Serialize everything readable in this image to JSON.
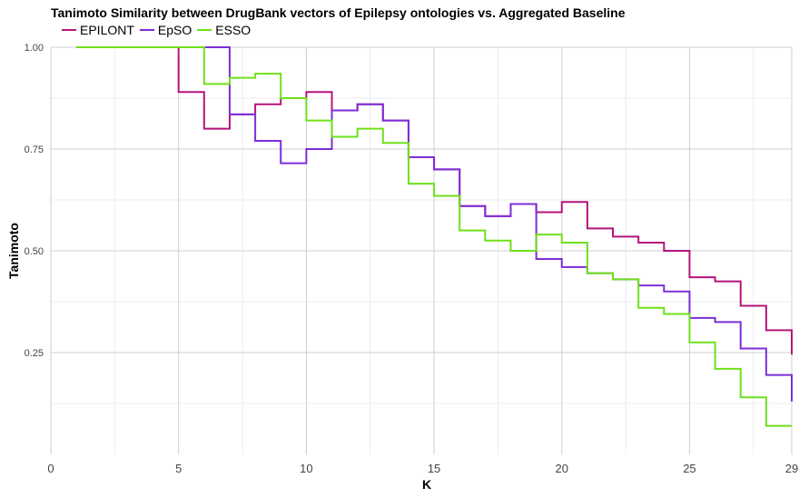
{
  "chart_data": {
    "type": "line",
    "step": true,
    "title": "Tanimoto Similarity between DrugBank vectors of Epilepsy ontologies vs. Aggregated Baseline",
    "xlabel": "K",
    "ylabel": "Tanimoto",
    "xlim": [
      0,
      29
    ],
    "ylim": [
      0,
      1.0
    ],
    "x_ticks": [
      0,
      5,
      10,
      15,
      20,
      25,
      29
    ],
    "y_ticks": [
      0.25,
      0.5,
      0.75,
      1.0
    ],
    "y_tick_labels": [
      "0.25",
      "0.50",
      "0.75",
      "1.00"
    ],
    "grid": true,
    "legend_position": "top-left",
    "x": [
      1,
      2,
      3,
      4,
      5,
      6,
      7,
      8,
      9,
      10,
      11,
      12,
      13,
      14,
      15,
      16,
      17,
      18,
      19,
      20,
      21,
      22,
      23,
      24,
      25,
      26,
      27,
      28,
      29
    ],
    "series": [
      {
        "name": "EPILONT",
        "color": "#b5157a",
        "values": [
          1.0,
          1.0,
          1.0,
          1.0,
          0.89,
          0.8,
          0.835,
          0.86,
          0.875,
          0.89,
          0.845,
          0.86,
          0.82,
          0.73,
          0.7,
          0.61,
          0.585,
          0.615,
          0.595,
          0.62,
          0.555,
          0.535,
          0.52,
          0.5,
          0.435,
          0.425,
          0.365,
          0.305,
          0.245
        ]
      },
      {
        "name": "EpSO",
        "color": "#7b2fd8",
        "values": [
          1.0,
          1.0,
          1.0,
          1.0,
          1.0,
          1.0,
          0.835,
          0.77,
          0.715,
          0.75,
          0.845,
          0.86,
          0.82,
          0.73,
          0.7,
          0.61,
          0.585,
          0.615,
          0.48,
          0.46,
          0.445,
          0.43,
          0.415,
          0.4,
          0.335,
          0.325,
          0.26,
          0.195,
          0.13
        ]
      },
      {
        "name": "ESSO",
        "color": "#6fe01a",
        "values": [
          1.0,
          1.0,
          1.0,
          1.0,
          1.0,
          0.91,
          0.925,
          0.935,
          0.875,
          0.82,
          0.78,
          0.8,
          0.765,
          0.665,
          0.635,
          0.55,
          0.525,
          0.5,
          0.54,
          0.52,
          0.445,
          0.43,
          0.36,
          0.345,
          0.275,
          0.21,
          0.14,
          0.07,
          0.07
        ]
      }
    ]
  }
}
